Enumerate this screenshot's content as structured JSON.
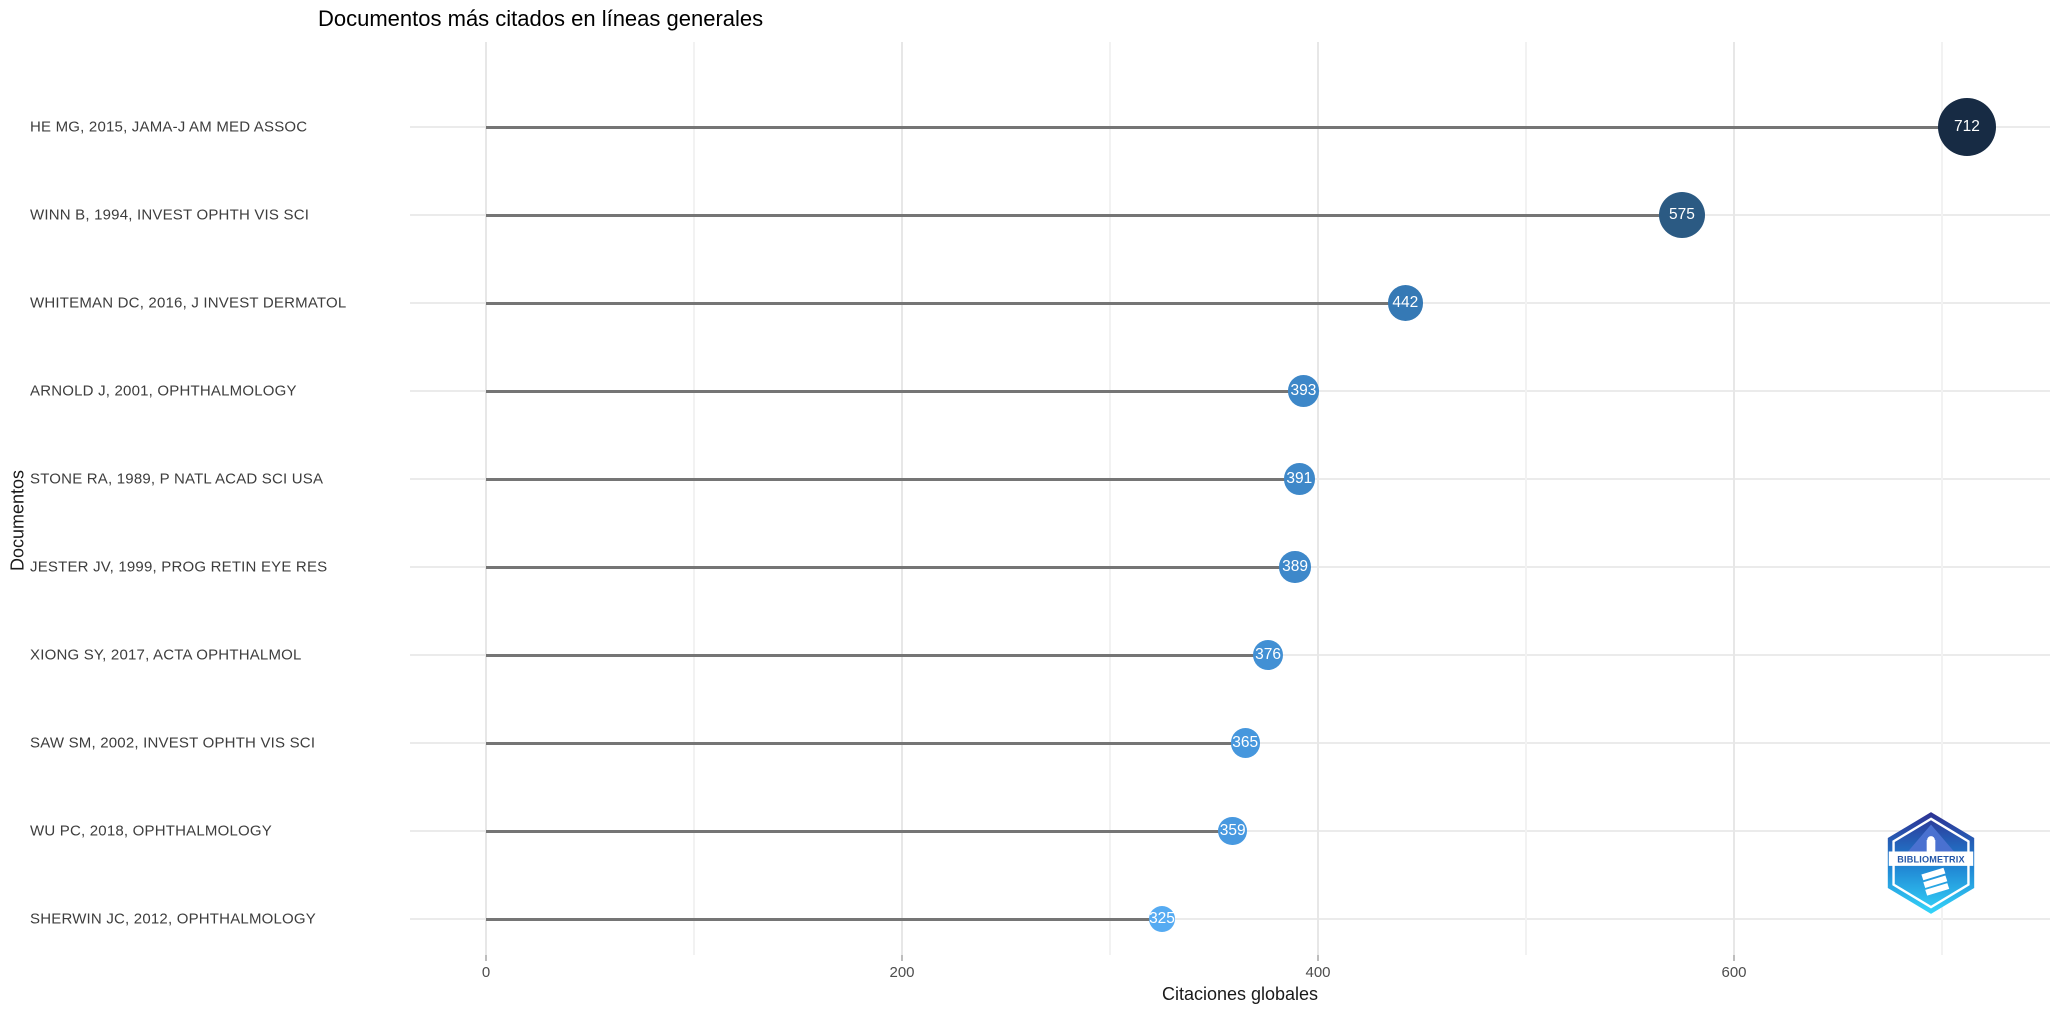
{
  "chart_data": {
    "type": "bar",
    "style": "horizontal-lollipop",
    "title": "Documentos más citados en líneas generales",
    "xlabel": "Citaciones globales",
    "ylabel": "Documentos",
    "categories": [
      "HE MG, 2015, JAMA-J AM MED ASSOC",
      "WINN B, 1994, INVEST OPHTH VIS SCI",
      "WHITEMAN DC, 2016, J INVEST DERMATOL",
      "ARNOLD J, 2001, OPHTHALMOLOGY",
      "STONE RA, 1989, P NATL ACAD SCI USA",
      "JESTER JV, 1999, PROG RETIN EYE RES",
      "XIONG SY, 2017, ACTA OPHTHALMOL",
      "SAW SM, 2002, INVEST OPHTH VIS SCI",
      "WU PC, 2018, OPHTHALMOLOGY",
      "SHERWIN JC, 2012, OPHTHALMOLOGY"
    ],
    "values": [
      712,
      575,
      442,
      393,
      391,
      389,
      376,
      365,
      359,
      325
    ],
    "point_colors": [
      "#172b44",
      "#2b5a83",
      "#3579b5",
      "#3d87c8",
      "#3e88c9",
      "#3e88ca",
      "#4290d4",
      "#4697dd",
      "#4899e0",
      "#56abf2"
    ],
    "value_label_color": "#ffffff",
    "stem_color": "#757575",
    "xticks": [
      0,
      200,
      400,
      600
    ],
    "xticks_minor": [
      100,
      300,
      500,
      700
    ],
    "xlim": [
      -37,
      751
    ],
    "grid": "major+minor horizontal rows, white background",
    "legend": "none"
  },
  "logo": {
    "text": "BIBLIOMETRIX",
    "color_top": "#2e3192",
    "color_bottom": "#33d6fa",
    "text_color": "#2456a8"
  }
}
